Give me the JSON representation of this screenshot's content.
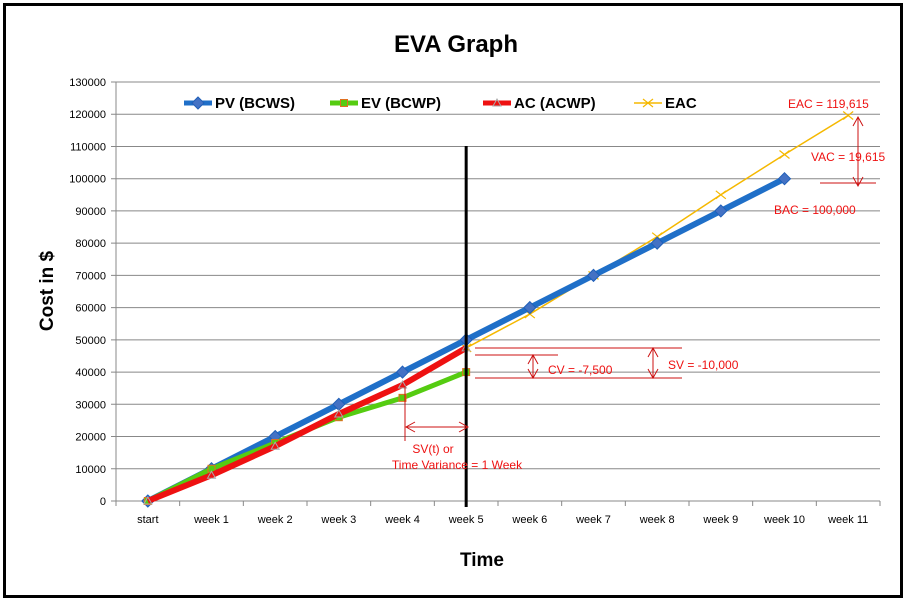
{
  "chart_data": {
    "type": "line",
    "title": "EVA Graph",
    "xlabel": "Time",
    "ylabel": "Cost in $",
    "ylim": [
      0,
      130000
    ],
    "yticks": [
      0,
      10000,
      20000,
      30000,
      40000,
      50000,
      60000,
      70000,
      80000,
      90000,
      100000,
      110000,
      120000,
      130000
    ],
    "categories": [
      "start",
      "week 1",
      "week 2",
      "week 3",
      "week 4",
      "week 5",
      "week 6",
      "week 7",
      "week 8",
      "week 9",
      "week 10",
      "week 11"
    ],
    "grid": true,
    "legend_position": "top",
    "series": [
      {
        "name": "PV (BCWS)",
        "color": "#1f6fc8",
        "marker": "diamond",
        "values": [
          0,
          10000,
          20000,
          30000,
          40000,
          50000,
          60000,
          70000,
          80000,
          90000,
          100000,
          null
        ]
      },
      {
        "name": "EV (BCWP)",
        "color": "#55cc11",
        "marker": "square",
        "values": [
          0,
          10000,
          18000,
          26000,
          32000,
          40000,
          null,
          null,
          null,
          null,
          null,
          null
        ]
      },
      {
        "name": "AC (ACWP)",
        "color": "#ee1111",
        "marker": "triangle",
        "values": [
          0,
          8000,
          17000,
          27000,
          36000,
          47500,
          null,
          null,
          null,
          null,
          null,
          null
        ]
      },
      {
        "name": "EAC",
        "color": "#f5b800",
        "marker": "x",
        "values": [
          null,
          null,
          null,
          null,
          null,
          47500,
          58000,
          70000,
          82000,
          95000,
          107500,
          119615
        ]
      }
    ],
    "status_date_marker": "week 5",
    "annotations": [
      {
        "id": "eac",
        "text": "EAC = 119,615"
      },
      {
        "id": "vac",
        "text": "VAC = 19,615"
      },
      {
        "id": "bac",
        "text": "BAC = 100,000"
      },
      {
        "id": "cv",
        "text": "CV = -7,500"
      },
      {
        "id": "sv",
        "text": "SV = -10,000"
      },
      {
        "id": "svt1",
        "text": "SV(t) or"
      },
      {
        "id": "svt2",
        "text": "Time Variance = 1 Week"
      }
    ]
  }
}
